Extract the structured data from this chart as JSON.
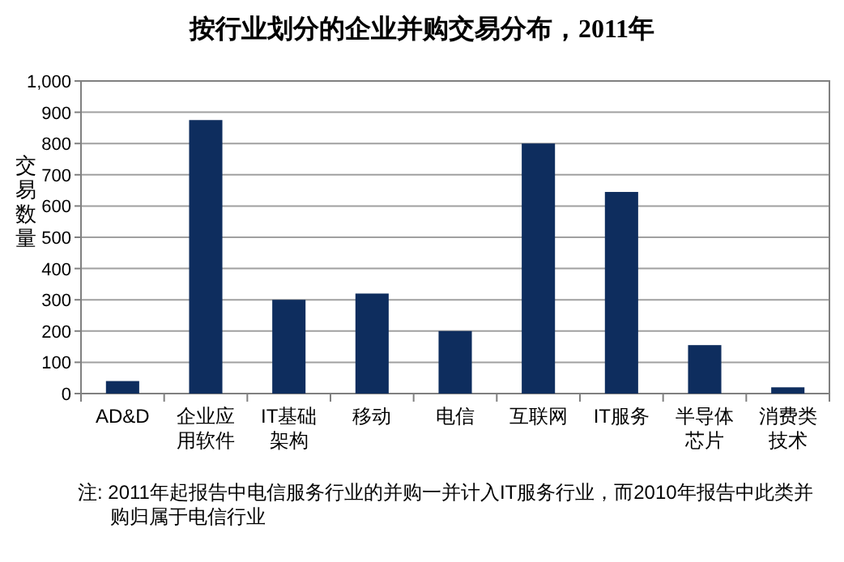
{
  "chart_data": {
    "type": "bar",
    "title": "按行业划分的企业并购交易分布，2011年",
    "ylabel": "交易数量",
    "categories": [
      "AD&D",
      "企业应用软件",
      "IT基础架构",
      "移动",
      "电信",
      "互联网",
      "IT服务",
      "半导体芯片",
      "消费类技术"
    ],
    "values": [
      40,
      875,
      300,
      320,
      200,
      800,
      645,
      155,
      20
    ],
    "color": "#0e2d5e",
    "ylim": [
      0,
      1000
    ],
    "yticks": [
      0,
      100,
      200,
      300,
      400,
      500,
      600,
      700,
      800,
      900,
      {
        "value": 1000,
        "label": "1,000"
      }
    ],
    "grid": "y",
    "annotations": [
      "注: 2011年起报告中电信服务行业的并购一并计入IT服务行业，而2010年报告中此类并购归属于电信行业"
    ]
  }
}
